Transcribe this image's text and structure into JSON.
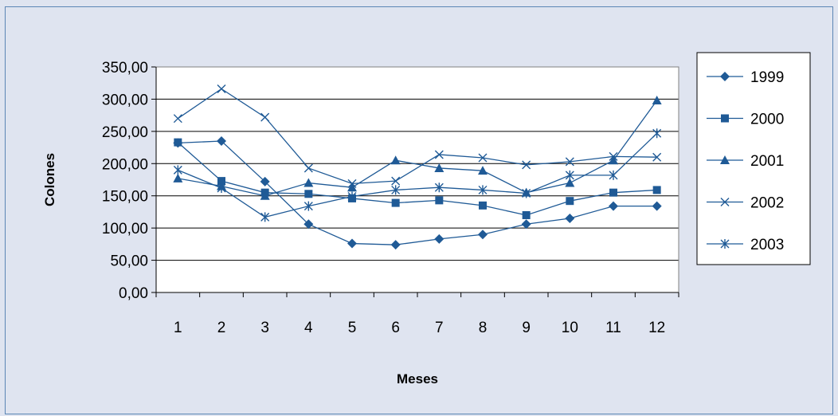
{
  "chart_data": {
    "type": "line",
    "xlabel": "Meses",
    "ylabel": "Colones",
    "ylim": [
      0,
      350
    ],
    "y_ticks": [
      "0,00",
      "50,00",
      "100,00",
      "150,00",
      "200,00",
      "250,00",
      "300,00",
      "350,00"
    ],
    "categories": [
      "1",
      "2",
      "3",
      "4",
      "5",
      "6",
      "7",
      "8",
      "9",
      "10",
      "11",
      "12"
    ],
    "grid": true,
    "legend_position": "right",
    "series_color": "#1f5a96",
    "series": [
      {
        "name": "1999",
        "marker": "diamond",
        "values": [
          232,
          235,
          172,
          106,
          76,
          74,
          83,
          90,
          106,
          115,
          134,
          134
        ]
      },
      {
        "name": "2000",
        "marker": "square",
        "values": [
          233,
          173,
          155,
          153,
          146,
          139,
          143,
          135,
          120,
          142,
          155,
          159
        ]
      },
      {
        "name": "2001",
        "marker": "triangle",
        "values": [
          177,
          165,
          150,
          170,
          163,
          205,
          193,
          189,
          155,
          170,
          205,
          298
        ]
      },
      {
        "name": "2002",
        "marker": "x",
        "values": [
          270,
          316,
          272,
          193,
          169,
          173,
          214,
          209,
          198,
          203,
          211,
          210
        ]
      },
      {
        "name": "2003",
        "marker": "star",
        "values": [
          190,
          162,
          117,
          134,
          149,
          159,
          163,
          159,
          154,
          182,
          182,
          247
        ]
      }
    ]
  }
}
